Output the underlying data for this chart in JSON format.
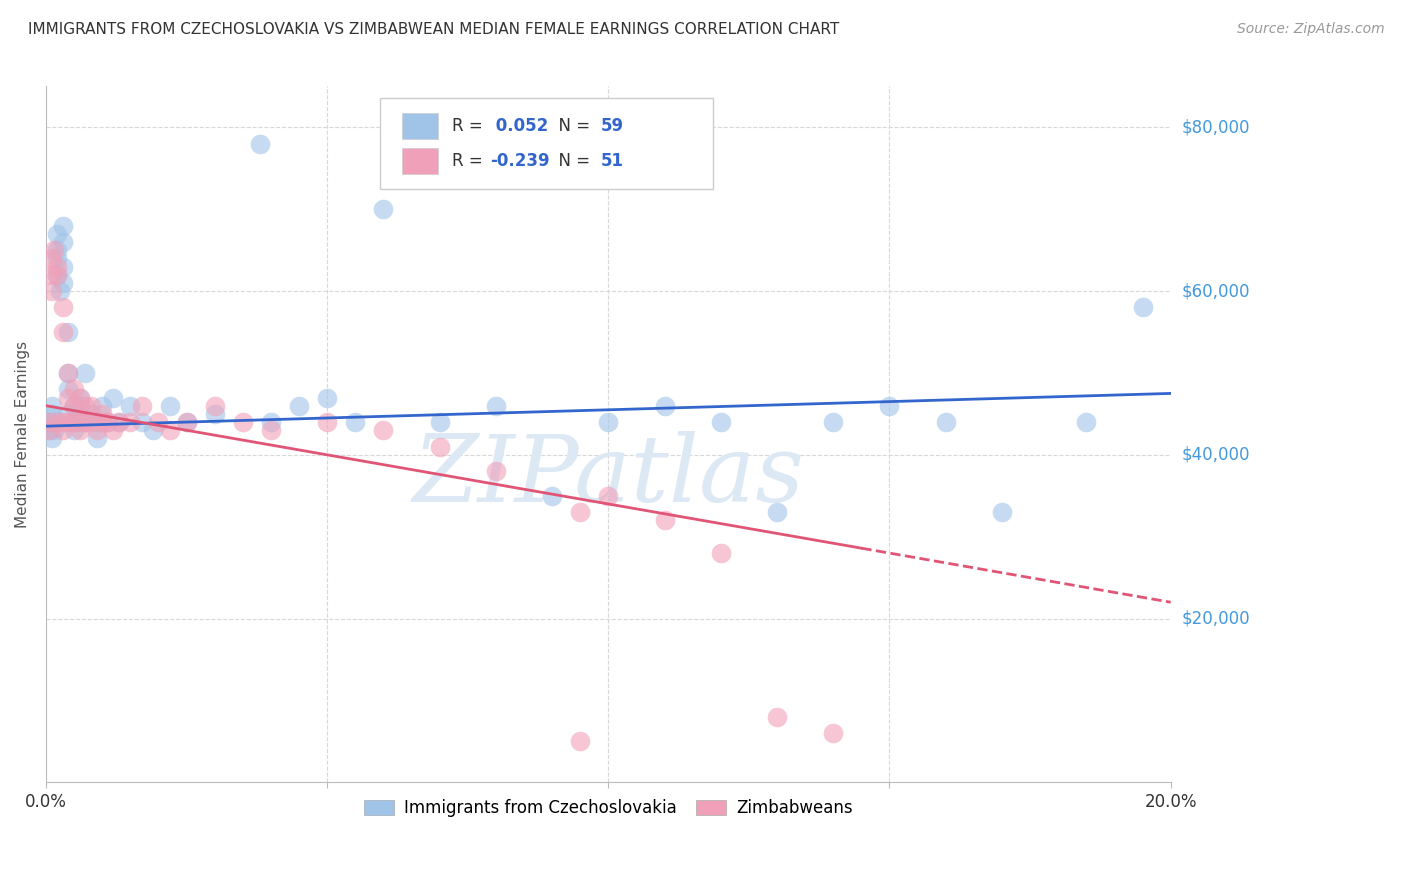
{
  "title": "IMMIGRANTS FROM CZECHOSLOVAKIA VS ZIMBABWEAN MEDIAN FEMALE EARNINGS CORRELATION CHART",
  "source": "Source: ZipAtlas.com",
  "ylabel": "Median Female Earnings",
  "series1_label": "Immigrants from Czechoslovakia",
  "series2_label": "Zimbabweans",
  "series1_color": "#a0c4e8",
  "series2_color": "#f0a0b8",
  "trendline1_color": "#3366cc",
  "trendline2_color": "#e05575",
  "background_color": "#ffffff",
  "grid_color": "#d8d8d8",
  "title_color": "#333333",
  "right_label_color": "#4499dd",
  "xlim": [
    0.0,
    0.2
  ],
  "ylim": [
    0,
    85000
  ],
  "R1": 0.052,
  "N1": 59,
  "R2": -0.239,
  "N2": 51,
  "blue_x": [
    0.0005,
    0.0008,
    0.001,
    0.001,
    0.001,
    0.0015,
    0.0015,
    0.002,
    0.002,
    0.002,
    0.002,
    0.0025,
    0.003,
    0.003,
    0.003,
    0.003,
    0.004,
    0.004,
    0.004,
    0.004,
    0.005,
    0.005,
    0.005,
    0.006,
    0.006,
    0.007,
    0.007,
    0.008,
    0.009,
    0.009,
    0.01,
    0.011,
    0.012,
    0.013,
    0.015,
    0.017,
    0.019,
    0.022,
    0.025,
    0.03,
    0.038,
    0.04,
    0.045,
    0.05,
    0.055,
    0.06,
    0.07,
    0.08,
    0.09,
    0.1,
    0.11,
    0.12,
    0.13,
    0.14,
    0.15,
    0.16,
    0.17,
    0.185,
    0.195
  ],
  "blue_y": [
    44000,
    43000,
    46000,
    42000,
    45000,
    44000,
    43000,
    67000,
    65000,
    64000,
    62000,
    60000,
    66000,
    63000,
    61000,
    68000,
    55000,
    50000,
    48000,
    45000,
    46000,
    44000,
    43000,
    47000,
    46000,
    50000,
    44000,
    45000,
    44000,
    42000,
    46000,
    44000,
    47000,
    44000,
    46000,
    44000,
    43000,
    46000,
    44000,
    45000,
    78000,
    44000,
    46000,
    47000,
    44000,
    70000,
    44000,
    46000,
    35000,
    44000,
    46000,
    44000,
    33000,
    44000,
    46000,
    44000,
    33000,
    44000,
    58000
  ],
  "pink_x": [
    0.0003,
    0.0005,
    0.001,
    0.001,
    0.001,
    0.0015,
    0.002,
    0.002,
    0.002,
    0.003,
    0.003,
    0.003,
    0.003,
    0.004,
    0.004,
    0.004,
    0.005,
    0.005,
    0.005,
    0.006,
    0.006,
    0.006,
    0.007,
    0.007,
    0.008,
    0.008,
    0.009,
    0.01,
    0.01,
    0.011,
    0.012,
    0.013,
    0.015,
    0.017,
    0.02,
    0.022,
    0.025,
    0.03,
    0.035,
    0.04,
    0.05,
    0.06,
    0.07,
    0.08,
    0.095,
    0.1,
    0.11,
    0.12,
    0.13,
    0.14,
    0.095
  ],
  "pink_y": [
    44000,
    43000,
    64000,
    62000,
    60000,
    65000,
    63000,
    62000,
    44000,
    58000,
    55000,
    44000,
    43000,
    50000,
    47000,
    44000,
    48000,
    46000,
    44000,
    47000,
    44000,
    43000,
    46000,
    44000,
    46000,
    44000,
    43000,
    45000,
    44000,
    44000,
    43000,
    44000,
    44000,
    46000,
    44000,
    43000,
    44000,
    46000,
    44000,
    43000,
    44000,
    43000,
    41000,
    38000,
    33000,
    35000,
    32000,
    28000,
    8000,
    6000,
    5000
  ]
}
